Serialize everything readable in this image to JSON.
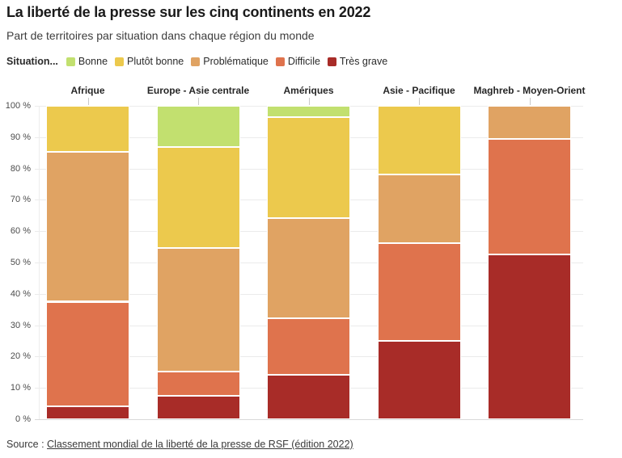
{
  "header": {
    "title": "La liberté de la presse sur les cinq continents en 2022",
    "subtitle": "Part de territoires par situation dans chaque région du monde"
  },
  "legend": {
    "label": "Situation..."
  },
  "chart_data": {
    "type": "bar",
    "stacked": true,
    "title": "La liberté de la presse sur les cinq continents en 2022",
    "subtitle": "Part de territoires par situation dans chaque région du monde",
    "unit": "%",
    "ylim": [
      0,
      100
    ],
    "grid": true,
    "legend_position": "top",
    "yticks": [
      "100 %",
      "90 %",
      "80 %",
      "70 %",
      "60 %",
      "50 %",
      "40 %",
      "30 %",
      "20 %",
      "10 %",
      "0 %"
    ],
    "categories": [
      "Afrique",
      "Europe - Asie centrale",
      "Amériques",
      "Asie - Pacifique",
      "Maghreb - Moyen-Orient"
    ],
    "series": [
      {
        "name": "Bonne",
        "color": "#c2e06f",
        "values": [
          0,
          13.2,
          3.6,
          0,
          0
        ]
      },
      {
        "name": "Plutôt bonne",
        "color": "#ecc94d",
        "values": [
          14.6,
          32.1,
          32.1,
          21.9,
          0
        ]
      },
      {
        "name": "Problématique",
        "color": "#e0a363",
        "values": [
          47.9,
          39.6,
          32.1,
          21.9,
          10.5
        ]
      },
      {
        "name": "Difficile",
        "color": "#df734d",
        "values": [
          33.3,
          7.5,
          17.9,
          31.2,
          36.8
        ]
      },
      {
        "name": "Très grave",
        "color": "#a82c28",
        "values": [
          4.2,
          7.6,
          14.3,
          25.0,
          52.7
        ]
      }
    ]
  },
  "source": {
    "prefix": "Source : ",
    "link": "Classement mondial de la liberté de la presse de RSF (édition 2022)"
  }
}
